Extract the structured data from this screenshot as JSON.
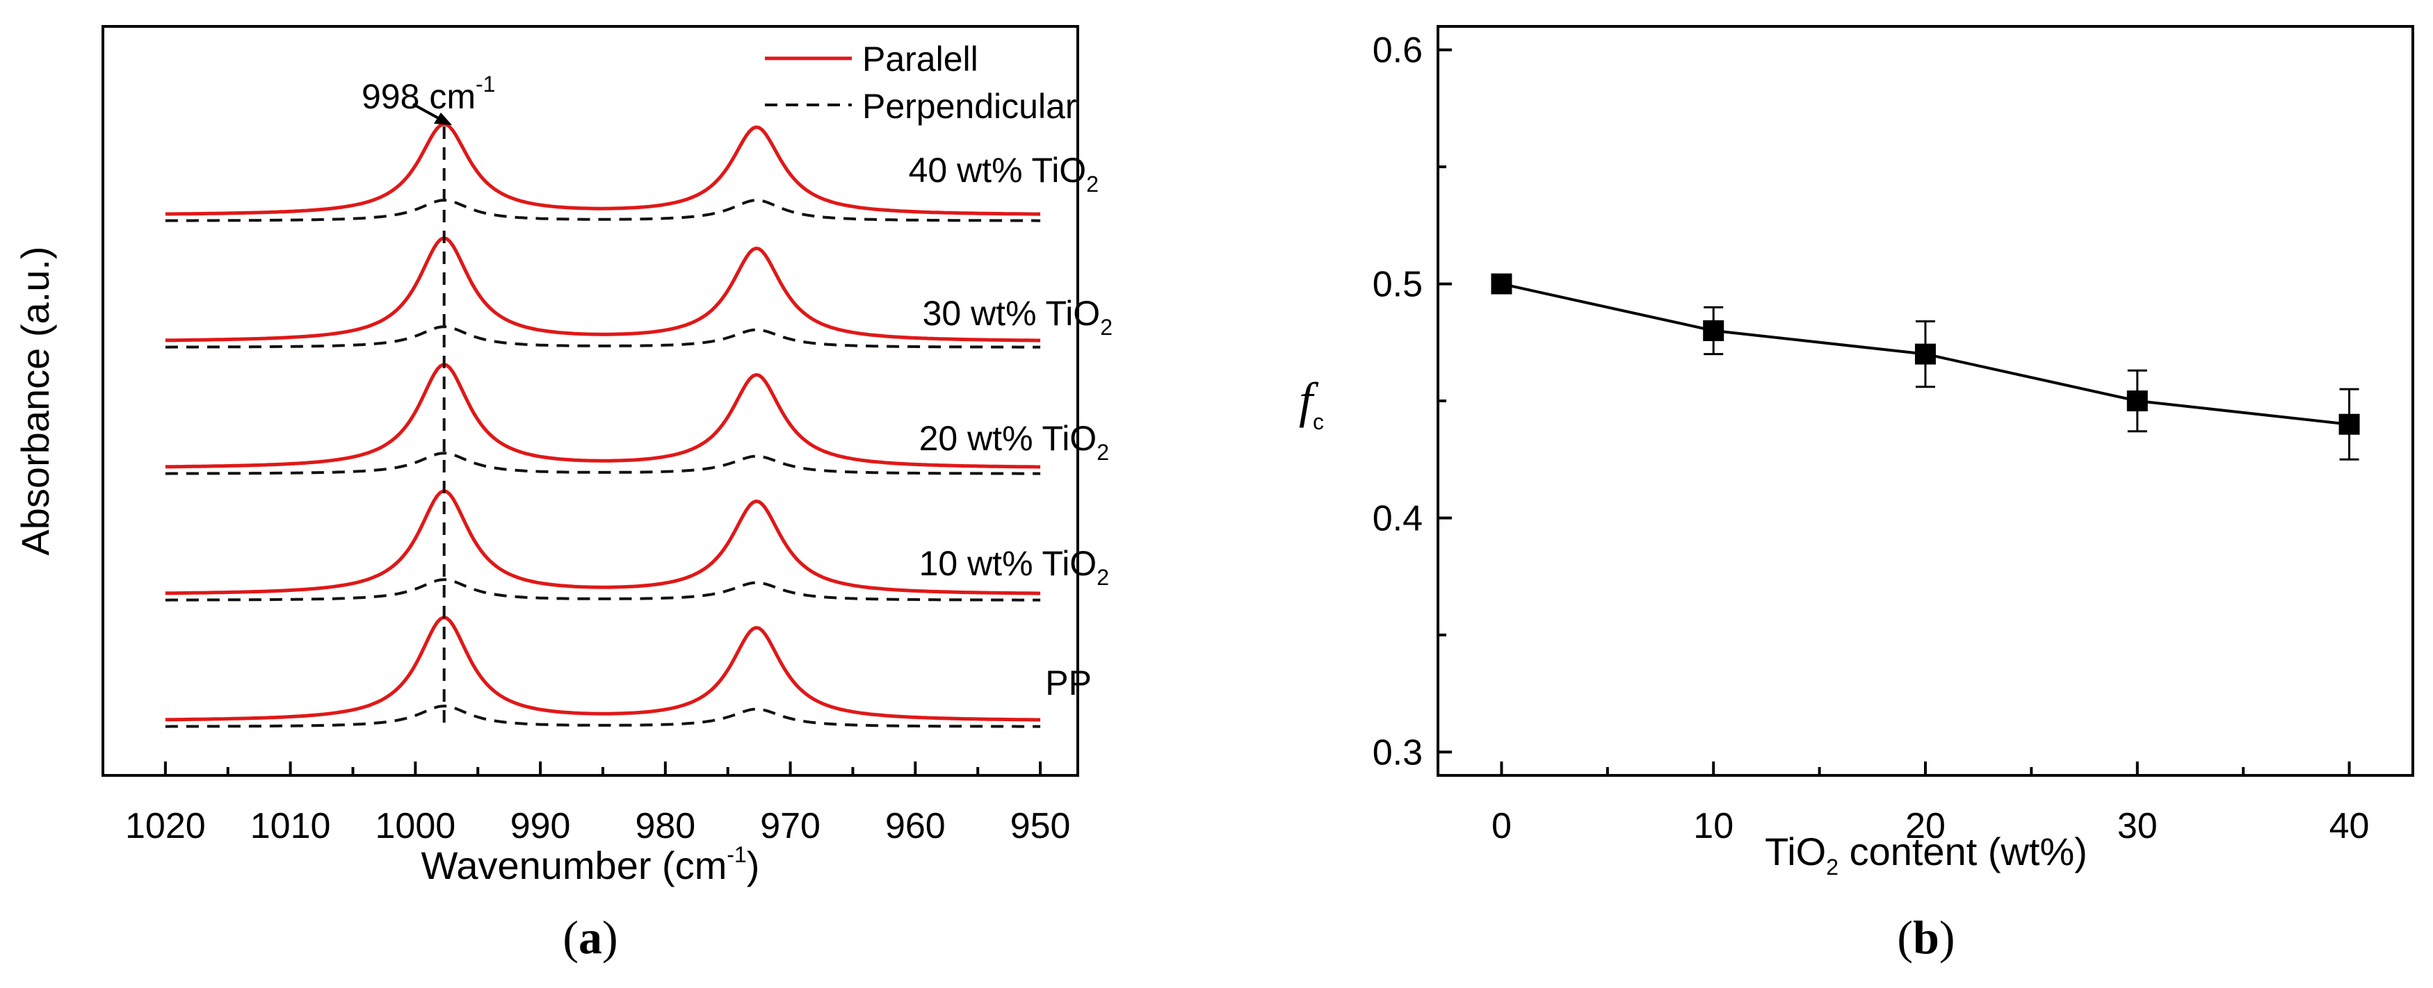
{
  "chart_data": [
    {
      "panel": "(a)",
      "panel_label": "a",
      "type": "line",
      "title": "",
      "xlabel": "Wavenumber (cm",
      "xlabel_sup": "-1",
      "xlabel_tail": ")",
      "ylabel": "Absorbance (a.u.)",
      "xlim": [
        1025,
        947
      ],
      "x_reversed": true,
      "xticks": [
        1020,
        1010,
        1000,
        990,
        980,
        970,
        960,
        950
      ],
      "yticks": [],
      "legend": {
        "position": "top-right",
        "entries": [
          {
            "name": "Paralell",
            "style": "solid",
            "color": "#e01818"
          },
          {
            "name": "Perpendicular",
            "style": "dashed",
            "color": "#111111"
          }
        ]
      },
      "peak_annotation": {
        "text": "998 cm",
        "sup": "-1",
        "x": 997.7
      },
      "peak_centers": [
        997.7,
        972.7
      ],
      "series": [
        {
          "name": "PP",
          "offset": 0,
          "parallel_heights": [
            1.0,
            0.9
          ],
          "perpendicular_heights": [
            0.2,
            0.17
          ],
          "label": "PP",
          "label_sub": ""
        },
        {
          "name": "10 wt% TiO2",
          "offset": 1,
          "parallel_heights": [
            1.0,
            0.9
          ],
          "perpendicular_heights": [
            0.2,
            0.17
          ],
          "label": "10 wt% TiO",
          "label_sub": "2"
        },
        {
          "name": "20 wt% TiO2",
          "offset": 2,
          "parallel_heights": [
            1.0,
            0.9
          ],
          "perpendicular_heights": [
            0.2,
            0.17
          ],
          "label": "20 wt% TiO",
          "label_sub": "2"
        },
        {
          "name": "30 wt% TiO2",
          "offset": 3,
          "parallel_heights": [
            1.0,
            0.9
          ],
          "perpendicular_heights": [
            0.2,
            0.17
          ],
          "label": "30 wt% TiO",
          "label_sub": "2"
        },
        {
          "name": "40 wt% TiO2",
          "offset": 4,
          "parallel_heights": [
            0.88,
            0.85
          ],
          "perpendicular_heights": [
            0.2,
            0.2
          ],
          "label": "40 wt% TiO",
          "label_sub": "2"
        }
      ]
    },
    {
      "panel": "(b)",
      "panel_label": "b",
      "type": "line",
      "title": "",
      "xlabel_pre": "TiO",
      "xlabel_sub": "2",
      "xlabel_post": " content (wt%)",
      "ylabel": "f",
      "ylabel_sub": "c",
      "xlim": [
        -3,
        43
      ],
      "ylim": [
        0.29,
        0.61
      ],
      "xticks": [
        0,
        10,
        20,
        30,
        40
      ],
      "yticks": [
        0.3,
        0.4,
        0.5,
        0.6
      ],
      "ytick_labels": [
        "0.3",
        "0.4",
        "0.5",
        "0.6"
      ],
      "x": [
        0,
        10,
        20,
        30,
        40
      ],
      "y": [
        0.5,
        0.48,
        0.47,
        0.45,
        0.44
      ],
      "yerr": [
        0.003,
        0.01,
        0.014,
        0.013,
        0.015
      ],
      "marker": "square"
    }
  ]
}
